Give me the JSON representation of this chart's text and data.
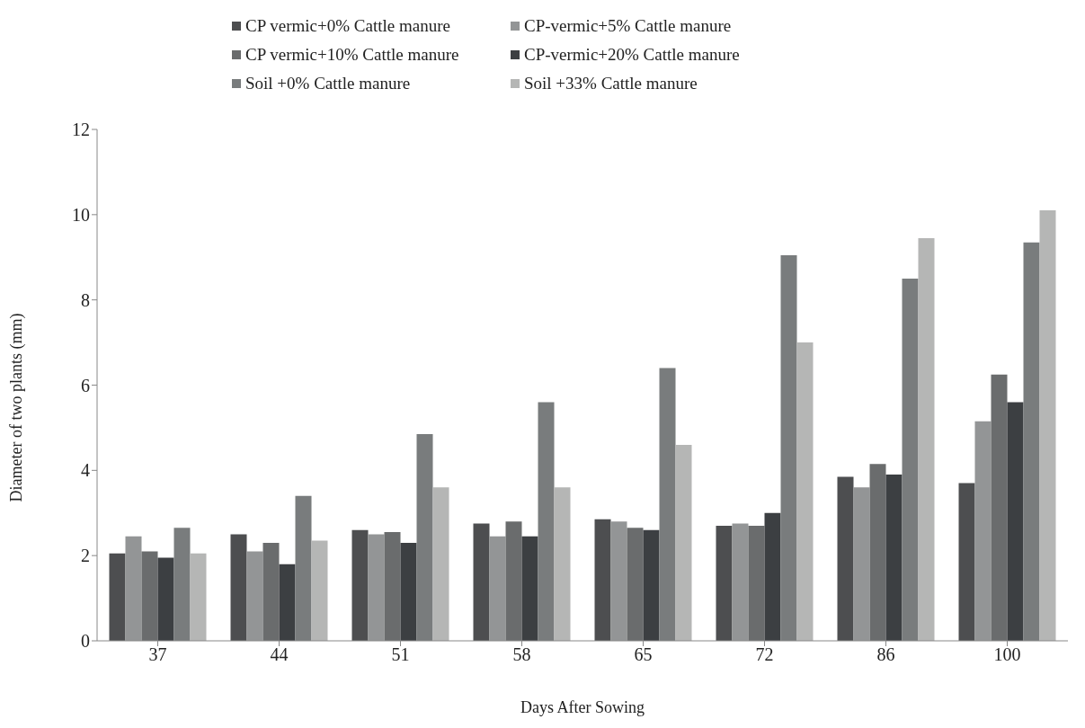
{
  "chart_data": {
    "type": "bar",
    "xlabel": "Days After Sowing",
    "ylabel": "Diameter of two plants (mm)",
    "categories": [
      "37",
      "44",
      "51",
      "58",
      "65",
      "72",
      "86",
      "100"
    ],
    "series": [
      {
        "name": "CP vermic+0% Cattle manure",
        "color": "#4d4e50",
        "values": [
          2.05,
          2.5,
          2.6,
          2.75,
          2.85,
          2.7,
          3.85,
          3.7
        ]
      },
      {
        "name": "CP-vermic+5% Cattle manure",
        "color": "#939596",
        "values": [
          2.45,
          2.1,
          2.5,
          2.45,
          2.8,
          2.75,
          3.6,
          5.15
        ]
      },
      {
        "name": "CP vermic+10% Cattle manure",
        "color": "#6a6c6d",
        "values": [
          2.1,
          2.3,
          2.55,
          2.8,
          2.65,
          2.7,
          4.15,
          6.25
        ]
      },
      {
        "name": "CP-vermic+20% Cattle manure",
        "color": "#3c3f42",
        "values": [
          1.95,
          1.8,
          2.3,
          2.45,
          2.6,
          3.0,
          3.9,
          5.6
        ]
      },
      {
        "name": "Soil +0% Cattle manure",
        "color": "#797c7d",
        "values": [
          2.65,
          3.4,
          4.85,
          5.6,
          6.4,
          9.05,
          8.5,
          9.35
        ]
      },
      {
        "name": "Soil +33% Cattle manure",
        "color": "#b5b6b5",
        "values": [
          2.05,
          2.35,
          3.6,
          3.6,
          4.6,
          7.0,
          9.45,
          10.1
        ]
      }
    ],
    "ylim": [
      0,
      12
    ],
    "yticks": [
      0,
      2,
      4,
      6,
      8,
      10,
      12
    ],
    "grid": false,
    "legend": "top"
  }
}
